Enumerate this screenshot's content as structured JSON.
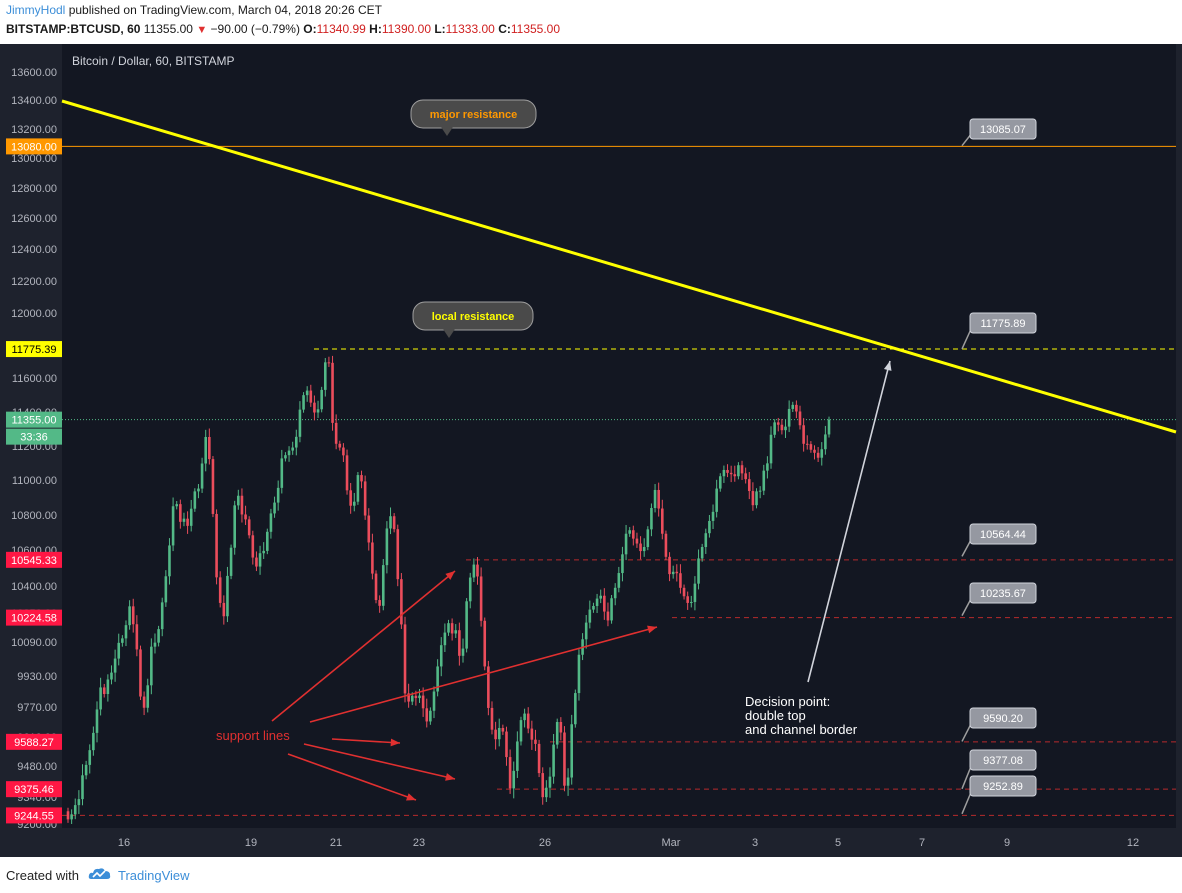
{
  "header": {
    "author": "JimmyHodl",
    "published": "published on TradingView.com, March 04, 2018 20:26 CET",
    "symbol": "BITSTAMP:BTCUSD, 60",
    "last": "11355.00",
    "change": "−90.00 (−0.79%)",
    "o_label": "O:",
    "o_val": "11340.99",
    "h_label": "H:",
    "h_val": "11390.00",
    "l_label": "L:",
    "l_val": "11333.00",
    "c_label": "C:",
    "c_val": "11355.00"
  },
  "footer": {
    "created_with": "Created with",
    "brand": "TradingView"
  },
  "chart_data": {
    "type": "candlestick",
    "title": "Bitcoin / Dollar, 60, BITSTAMP",
    "yticks": [
      "13600.00",
      "13400.00",
      "13200.00",
      "13000.00",
      "12800.00",
      "12600.00",
      "12400.00",
      "12200.00",
      "12000.00",
      "11800.00",
      "11600.00",
      "11400.00",
      "11200.00",
      "11000.00",
      "10800.00",
      "10600.00",
      "10400.00",
      "10250.00",
      "10090.00",
      "9930.00",
      "9770.00",
      "9610.00",
      "9480.00",
      "9340.00",
      "9200.00"
    ],
    "xticks": [
      "16",
      "19",
      "21",
      "23",
      "26",
      "Mar",
      "3",
      "5",
      "7",
      "9",
      "12"
    ],
    "price_tags": [
      {
        "value": "13080.00",
        "color": "#ff9800"
      },
      {
        "value": "11775.39",
        "color": "#ffff00"
      },
      {
        "value": "11355.00",
        "color": "#53b987"
      },
      {
        "value": "33:36",
        "color": "#53b987"
      },
      {
        "value": "10545.33",
        "color": "#ff1744"
      },
      {
        "value": "10224.58",
        "color": "#ff1744"
      },
      {
        "value": "9588.27",
        "color": "#ff1744"
      },
      {
        "value": "9375.46",
        "color": "#ff1744"
      },
      {
        "value": "9244.55",
        "color": "#ff1744"
      }
    ],
    "right_labels": [
      "13085.07",
      "11775.89",
      "10564.44",
      "10235.67",
      "9590.20",
      "9377.08",
      "9252.89"
    ],
    "callouts": {
      "major": "major resistance",
      "local": "local resistance"
    },
    "support_text": "support lines",
    "decision_text": [
      "Decision point:",
      "double top",
      "and channel border"
    ],
    "colors": {
      "bg": "#131722",
      "up": "#53b987",
      "down": "#eb4d5c",
      "trend": "#ffff00",
      "orange": "#ff9800",
      "support": "#e03030"
    },
    "candles": [
      [
        9266,
        9224
      ],
      [
        9224,
        9250
      ],
      [
        9250,
        9298
      ],
      [
        9298,
        9329
      ],
      [
        9329,
        9438
      ],
      [
        9438,
        9485
      ],
      [
        9485,
        9551
      ],
      [
        9551,
        9632
      ],
      [
        9632,
        9757
      ],
      [
        9757,
        9871
      ],
      [
        9871,
        9837
      ],
      [
        9837,
        9912
      ],
      [
        9912,
        9946
      ],
      [
        9946,
        10012
      ],
      [
        10012,
        10086
      ],
      [
        10086,
        10110
      ],
      [
        10110,
        10183
      ],
      [
        10183,
        10287
      ],
      [
        10287,
        10188
      ],
      [
        10188,
        10055
      ],
      [
        10055,
        9824
      ],
      [
        9824,
        9766
      ],
      [
        9766,
        9882
      ],
      [
        9882,
        10068
      ],
      [
        10068,
        10087
      ],
      [
        10087,
        10161
      ],
      [
        10161,
        10309
      ],
      [
        10309,
        10454
      ],
      [
        10454,
        10626
      ],
      [
        10626,
        10850
      ],
      [
        10850,
        10862
      ],
      [
        10862,
        10761
      ],
      [
        10761,
        10779
      ],
      [
        10779,
        10738
      ],
      [
        10738,
        10836
      ],
      [
        10836,
        10935
      ],
      [
        10935,
        10951
      ],
      [
        10951,
        11097
      ],
      [
        11097,
        11253
      ],
      [
        11253,
        11123
      ],
      [
        11123,
        10806
      ],
      [
        10806,
        10448
      ],
      [
        10448,
        10306
      ],
      [
        10306,
        10232
      ],
      [
        10232,
        10456
      ],
      [
        10456,
        10613
      ],
      [
        10613,
        10855
      ],
      [
        10855,
        10910
      ],
      [
        10910,
        10803
      ],
      [
        10803,
        10775
      ],
      [
        10775,
        10684
      ],
      [
        10684,
        10558
      ],
      [
        10558,
        10508
      ],
      [
        10508,
        10582
      ],
      [
        10582,
        10595
      ],
      [
        10595,
        10704
      ],
      [
        10704,
        10809
      ],
      [
        10809,
        10871
      ],
      [
        10871,
        10955
      ],
      [
        10955,
        11127
      ],
      [
        11127,
        11146
      ],
      [
        11146,
        11173
      ],
      [
        11173,
        11191
      ],
      [
        11191,
        11254
      ],
      [
        11254,
        11414
      ],
      [
        11414,
        11499
      ],
      [
        11499,
        11526
      ],
      [
        11526,
        11455
      ],
      [
        11455,
        11397
      ],
      [
        11397,
        11416
      ],
      [
        11416,
        11530
      ],
      [
        11530,
        11695
      ],
      [
        11695,
        11692
      ],
      [
        11692,
        11336
      ],
      [
        11336,
        11213
      ],
      [
        11213,
        11191
      ],
      [
        11191,
        11145
      ],
      [
        11145,
        10941
      ],
      [
        10941,
        10853
      ],
      [
        10853,
        10876
      ],
      [
        10876,
        11029
      ],
      [
        11029,
        10992
      ],
      [
        10992,
        10797
      ],
      [
        10797,
        10643
      ],
      [
        10643,
        10469
      ],
      [
        10469,
        10322
      ],
      [
        10322,
        10290
      ],
      [
        10290,
        10516
      ],
      [
        10516,
        10723
      ],
      [
        10723,
        10793
      ],
      [
        10793,
        10719
      ],
      [
        10719,
        10438
      ],
      [
        10438,
        10187
      ],
      [
        10187,
        9840
      ],
      [
        9840,
        9798
      ],
      [
        9798,
        9828
      ],
      [
        9828,
        9816
      ],
      [
        9816,
        9829
      ],
      [
        9829,
        9763
      ],
      [
        9763,
        9693
      ],
      [
        9693,
        9750
      ],
      [
        9750,
        9850
      ],
      [
        9850,
        9975
      ],
      [
        9975,
        10075
      ],
      [
        10075,
        10142
      ],
      [
        10142,
        10194
      ],
      [
        10194,
        10137
      ],
      [
        10137,
        10155
      ],
      [
        10155,
        10025
      ],
      [
        10025,
        10059
      ],
      [
        10059,
        10315
      ],
      [
        10315,
        10447
      ],
      [
        10447,
        10519
      ],
      [
        10519,
        10453
      ],
      [
        10453,
        10207
      ],
      [
        10207,
        9975
      ],
      [
        9975,
        9765
      ],
      [
        9765,
        9649
      ],
      [
        9649,
        9600
      ],
      [
        9600,
        9658
      ],
      [
        9658,
        9639
      ],
      [
        9639,
        9520
      ],
      [
        9520,
        9379
      ],
      [
        9379,
        9458
      ],
      [
        9458,
        9590
      ],
      [
        9590,
        9700
      ],
      [
        9700,
        9735
      ],
      [
        9735,
        9655
      ],
      [
        9655,
        9598
      ],
      [
        9598,
        9579
      ],
      [
        9579,
        9448
      ],
      [
        9448,
        9339
      ],
      [
        9339,
        9382
      ],
      [
        9382,
        9432
      ],
      [
        9432,
        9576
      ],
      [
        9576,
        9690
      ],
      [
        9690,
        9634
      ],
      [
        9634,
        9391
      ],
      [
        9391,
        9428
      ],
      [
        9428,
        9678
      ],
      [
        9678,
        9842
      ],
      [
        9842,
        10030
      ],
      [
        10030,
        10105
      ],
      [
        10105,
        10197
      ],
      [
        10197,
        10269
      ],
      [
        10269,
        10289
      ],
      [
        10289,
        10330
      ],
      [
        10330,
        10346
      ],
      [
        10346,
        10258
      ],
      [
        10258,
        10209
      ],
      [
        10209,
        10332
      ],
      [
        10332,
        10390
      ],
      [
        10390,
        10472
      ],
      [
        10472,
        10576
      ],
      [
        10576,
        10693
      ],
      [
        10693,
        10713
      ],
      [
        10713,
        10665
      ],
      [
        10665,
        10637
      ],
      [
        10637,
        10594
      ],
      [
        10594,
        10617
      ],
      [
        10617,
        10718
      ],
      [
        10718,
        10840
      ],
      [
        10840,
        10943
      ],
      [
        10943,
        10837
      ],
      [
        10837,
        10693
      ],
      [
        10693,
        10562
      ],
      [
        10562,
        10466
      ],
      [
        10466,
        10479
      ],
      [
        10479,
        10471
      ],
      [
        10471,
        10390
      ],
      [
        10390,
        10343
      ],
      [
        10343,
        10306
      ],
      [
        10306,
        10311
      ],
      [
        10311,
        10413
      ],
      [
        10413,
        10553
      ],
      [
        10553,
        10617
      ],
      [
        10617,
        10696
      ],
      [
        10696,
        10766
      ],
      [
        10766,
        10818
      ],
      [
        10818,
        10951
      ],
      [
        10951,
        11022
      ],
      [
        11022,
        11059
      ],
      [
        11059,
        11042
      ],
      [
        11042,
        11034
      ],
      [
        11034,
        11022
      ],
      [
        11022,
        11087
      ],
      [
        11087,
        11039
      ],
      [
        11039,
        11005
      ],
      [
        11005,
        10937
      ],
      [
        10937,
        10856
      ],
      [
        10856,
        10935
      ],
      [
        10935,
        10939
      ],
      [
        10939,
        11055
      ],
      [
        11055,
        11098
      ],
      [
        11098,
        11266
      ],
      [
        11266,
        11339
      ],
      [
        11339,
        11325
      ],
      [
        11325,
        11293
      ],
      [
        11293,
        11314
      ],
      [
        11314,
        11418
      ],
      [
        11418,
        11442
      ],
      [
        11442,
        11403
      ],
      [
        11403,
        11322
      ],
      [
        11322,
        11213
      ],
      [
        11213,
        11211
      ],
      [
        11211,
        11178
      ],
      [
        11178,
        11160
      ],
      [
        11160,
        11131
      ],
      [
        11131,
        11181
      ],
      [
        11181,
        11268
      ],
      [
        11268,
        11355
      ]
    ]
  }
}
